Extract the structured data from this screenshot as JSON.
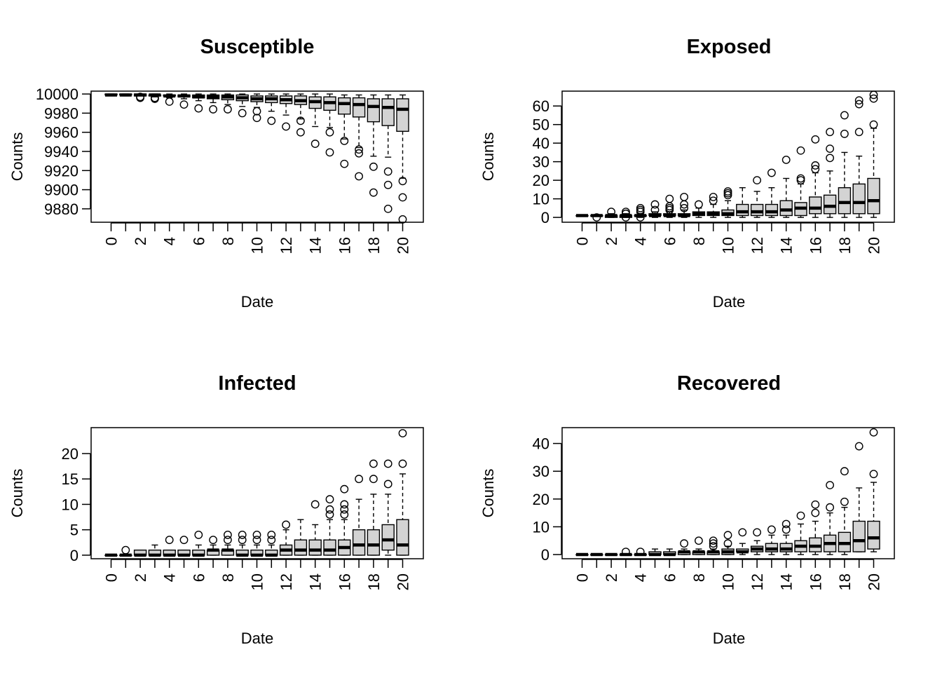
{
  "chart_data": [
    {
      "type": "boxplot",
      "title": "Susceptible",
      "xlabel": "Date",
      "ylabel": "Counts",
      "ylim": [
        9866,
        10003
      ],
      "yticks": [
        9880,
        9900,
        9920,
        9940,
        9960,
        9980,
        10000
      ],
      "x_tick_labels": [
        "0",
        "2",
        "4",
        "6",
        "8",
        "10",
        "12",
        "14",
        "16",
        "18",
        "20"
      ],
      "grid": false,
      "box_fill": "#d3d3d3",
      "categories": [
        0,
        1,
        2,
        3,
        4,
        5,
        6,
        7,
        8,
        9,
        10,
        11,
        12,
        13,
        14,
        15,
        16,
        17,
        18,
        19,
        20
      ],
      "boxes": [
        {
          "x": 0,
          "lo": 9999,
          "q1": 9999,
          "med": 9999,
          "q3": 10000,
          "hi": 10000,
          "out": []
        },
        {
          "x": 1,
          "lo": 9998,
          "q1": 9999,
          "med": 9999,
          "q3": 10000,
          "hi": 10000,
          "out": []
        },
        {
          "x": 2,
          "lo": 9998,
          "q1": 9998,
          "med": 9999,
          "q3": 10000,
          "hi": 10000,
          "out": [
            9996,
            9997
          ]
        },
        {
          "x": 3,
          "lo": 9997,
          "q1": 9998,
          "med": 9999,
          "q3": 9999,
          "hi": 10000,
          "out": [
            9995,
            9996
          ]
        },
        {
          "x": 4,
          "lo": 9996,
          "q1": 9998,
          "med": 9998,
          "q3": 9999,
          "hi": 10000,
          "out": [
            9992
          ]
        },
        {
          "x": 5,
          "lo": 9995,
          "q1": 9997,
          "med": 9998,
          "q3": 9999,
          "hi": 10000,
          "out": [
            9989
          ]
        },
        {
          "x": 6,
          "lo": 9993,
          "q1": 9996,
          "med": 9997,
          "q3": 9999,
          "hi": 10000,
          "out": [
            9985
          ]
        },
        {
          "x": 7,
          "lo": 9991,
          "q1": 9995,
          "med": 9997,
          "q3": 9999,
          "hi": 10000,
          "out": [
            9984
          ]
        },
        {
          "x": 8,
          "lo": 9989,
          "q1": 9994,
          "med": 9997,
          "q3": 9999,
          "hi": 10000,
          "out": [
            9984
          ]
        },
        {
          "x": 9,
          "lo": 9987,
          "q1": 9993,
          "med": 9996,
          "q3": 9999,
          "hi": 10000,
          "out": [
            9980
          ]
        },
        {
          "x": 10,
          "lo": 9986,
          "q1": 9992,
          "med": 9995,
          "q3": 9998,
          "hi": 10000,
          "out": [
            9975,
            9982
          ]
        },
        {
          "x": 11,
          "lo": 9982,
          "q1": 9991,
          "med": 9995,
          "q3": 9998,
          "hi": 10000,
          "out": [
            9972
          ]
        },
        {
          "x": 12,
          "lo": 9978,
          "q1": 9990,
          "med": 9994,
          "q3": 9998,
          "hi": 10000,
          "out": [
            9966
          ]
        },
        {
          "x": 13,
          "lo": 9974,
          "q1": 9989,
          "med": 9993,
          "q3": 9998,
          "hi": 10000,
          "out": [
            9960,
            9972
          ]
        },
        {
          "x": 14,
          "lo": 9966,
          "q1": 9985,
          "med": 9992,
          "q3": 9997,
          "hi": 10000,
          "out": [
            9948
          ]
        },
        {
          "x": 15,
          "lo": 9965,
          "q1": 9983,
          "med": 9991,
          "q3": 9997,
          "hi": 10000,
          "out": [
            9939,
            9960
          ]
        },
        {
          "x": 16,
          "lo": 9953,
          "q1": 9979,
          "med": 9990,
          "q3": 9996,
          "hi": 9999,
          "out": [
            9927,
            9951
          ]
        },
        {
          "x": 17,
          "lo": 9944,
          "q1": 9976,
          "med": 9989,
          "q3": 9996,
          "hi": 9999,
          "out": [
            9914,
            9938,
            9942
          ]
        },
        {
          "x": 18,
          "lo": 9935,
          "q1": 9971,
          "med": 9987,
          "q3": 9995,
          "hi": 9999,
          "out": [
            9897,
            9924
          ]
        },
        {
          "x": 19,
          "lo": 9934,
          "q1": 9967,
          "med": 9986,
          "q3": 9995,
          "hi": 9999,
          "out": [
            9880,
            9905,
            9919
          ]
        },
        {
          "x": 20,
          "lo": 9912,
          "q1": 9961,
          "med": 9984,
          "q3": 9995,
          "hi": 9999,
          "out": [
            9869,
            9892,
            9909
          ]
        }
      ]
    },
    {
      "type": "boxplot",
      "title": "Exposed",
      "xlabel": "Date",
      "ylabel": "Counts",
      "ylim": [
        -2.6,
        68
      ],
      "yticks": [
        0,
        10,
        20,
        30,
        40,
        50,
        60
      ],
      "x_tick_labels": [
        "0",
        "2",
        "4",
        "6",
        "8",
        "10",
        "12",
        "14",
        "16",
        "18",
        "20"
      ],
      "grid": false,
      "box_fill": "#d3d3d3",
      "categories": [
        0,
        1,
        2,
        3,
        4,
        5,
        6,
        7,
        8,
        9,
        10,
        11,
        12,
        13,
        14,
        15,
        16,
        17,
        18,
        19,
        20
      ],
      "boxes": [
        {
          "x": 0,
          "lo": 1,
          "q1": 1,
          "med": 1,
          "q3": 1,
          "hi": 1,
          "out": []
        },
        {
          "x": 1,
          "lo": 1,
          "q1": 1,
          "med": 1,
          "q3": 1,
          "hi": 1,
          "out": [
            0
          ]
        },
        {
          "x": 2,
          "lo": 0,
          "q1": 0,
          "med": 1,
          "q3": 1,
          "hi": 2,
          "out": [
            3
          ]
        },
        {
          "x": 3,
          "lo": 0,
          "q1": 0,
          "med": 1,
          "q3": 1,
          "hi": 2,
          "out": [
            0,
            2,
            3
          ]
        },
        {
          "x": 4,
          "lo": 0,
          "q1": 1,
          "med": 1,
          "q3": 1,
          "hi": 2,
          "out": [
            0,
            3,
            4,
            5
          ]
        },
        {
          "x": 5,
          "lo": 0,
          "q1": 1,
          "med": 1,
          "q3": 2,
          "hi": 3,
          "out": [
            4,
            7
          ]
        },
        {
          "x": 6,
          "lo": 0,
          "q1": 1,
          "med": 1,
          "q3": 2,
          "hi": 3,
          "out": [
            4,
            5,
            6,
            10
          ]
        },
        {
          "x": 7,
          "lo": 0,
          "q1": 1,
          "med": 1,
          "q3": 2,
          "hi": 4,
          "out": [
            5,
            7,
            11
          ]
        },
        {
          "x": 8,
          "lo": 0,
          "q1": 1,
          "med": 2,
          "q3": 3,
          "hi": 5,
          "out": [
            7
          ]
        },
        {
          "x": 9,
          "lo": 0,
          "q1": 1,
          "med": 2,
          "q3": 3,
          "hi": 7,
          "out": [
            9,
            11
          ]
        },
        {
          "x": 10,
          "lo": 0,
          "q1": 1,
          "med": 2,
          "q3": 4,
          "hi": 9,
          "out": [
            12,
            13,
            14
          ]
        },
        {
          "x": 11,
          "lo": 0,
          "q1": 1,
          "med": 3,
          "q3": 7,
          "hi": 16,
          "out": []
        },
        {
          "x": 12,
          "lo": 0,
          "q1": 1,
          "med": 3,
          "q3": 7,
          "hi": 14,
          "out": [
            20
          ]
        },
        {
          "x": 13,
          "lo": 0,
          "q1": 1,
          "med": 3,
          "q3": 7,
          "hi": 16,
          "out": [
            24
          ]
        },
        {
          "x": 14,
          "lo": 0,
          "q1": 1,
          "med": 4,
          "q3": 9,
          "hi": 21,
          "out": [
            31
          ]
        },
        {
          "x": 15,
          "lo": 0,
          "q1": 1,
          "med": 5,
          "q3": 8,
          "hi": 18,
          "out": [
            20,
            21,
            36
          ]
        },
        {
          "x": 16,
          "lo": 0,
          "q1": 2,
          "med": 5,
          "q3": 11,
          "hi": 24,
          "out": [
            26,
            28,
            42
          ]
        },
        {
          "x": 17,
          "lo": 0,
          "q1": 2,
          "med": 6,
          "q3": 12,
          "hi": 25,
          "out": [
            32,
            37,
            46
          ]
        },
        {
          "x": 18,
          "lo": 0,
          "q1": 2,
          "med": 8,
          "q3": 16,
          "hi": 35,
          "out": [
            45,
            55
          ]
        },
        {
          "x": 19,
          "lo": 0,
          "q1": 2,
          "med": 8,
          "q3": 18,
          "hi": 33,
          "out": [
            46,
            61,
            63
          ]
        },
        {
          "x": 20,
          "lo": 0,
          "q1": 2,
          "med": 9,
          "q3": 21,
          "hi": 48,
          "out": [
            50,
            64,
            66
          ]
        }
      ]
    },
    {
      "type": "boxplot",
      "title": "Infected",
      "xlabel": "Date",
      "ylabel": "Counts",
      "ylim": [
        -0.7,
        25.1
      ],
      "yticks": [
        0,
        5,
        10,
        15,
        20
      ],
      "x_tick_labels": [
        "0",
        "2",
        "4",
        "6",
        "8",
        "10",
        "12",
        "14",
        "16",
        "18",
        "20"
      ],
      "grid": false,
      "box_fill": "#d3d3d3",
      "categories": [
        0,
        1,
        2,
        3,
        4,
        5,
        6,
        7,
        8,
        9,
        10,
        11,
        12,
        13,
        14,
        15,
        16,
        17,
        18,
        19,
        20
      ],
      "boxes": [
        {
          "x": 0,
          "lo": 0,
          "q1": 0,
          "med": 0,
          "q3": 0,
          "hi": 0,
          "out": []
        },
        {
          "x": 1,
          "lo": 0,
          "q1": 0,
          "med": 0,
          "q3": 0,
          "hi": 0,
          "out": [
            1
          ]
        },
        {
          "x": 2,
          "lo": 0,
          "q1": 0,
          "med": 0,
          "q3": 1,
          "hi": 1,
          "out": []
        },
        {
          "x": 3,
          "lo": 0,
          "q1": 0,
          "med": 0,
          "q3": 1,
          "hi": 2,
          "out": []
        },
        {
          "x": 4,
          "lo": 0,
          "q1": 0,
          "med": 0,
          "q3": 1,
          "hi": 1,
          "out": [
            3
          ]
        },
        {
          "x": 5,
          "lo": 0,
          "q1": 0,
          "med": 0,
          "q3": 1,
          "hi": 1,
          "out": [
            3
          ]
        },
        {
          "x": 6,
          "lo": 0,
          "q1": 0,
          "med": 0,
          "q3": 1,
          "hi": 2,
          "out": [
            4
          ]
        },
        {
          "x": 7,
          "lo": 0,
          "q1": 0,
          "med": 1,
          "q3": 1,
          "hi": 2,
          "out": [
            3
          ]
        },
        {
          "x": 8,
          "lo": 0,
          "q1": 0,
          "med": 1,
          "q3": 1,
          "hi": 2,
          "out": [
            3,
            4
          ]
        },
        {
          "x": 9,
          "lo": 0,
          "q1": 0,
          "med": 0,
          "q3": 1,
          "hi": 2,
          "out": [
            3,
            4
          ]
        },
        {
          "x": 10,
          "lo": 0,
          "q1": 0,
          "med": 0,
          "q3": 1,
          "hi": 2,
          "out": [
            3,
            4
          ]
        },
        {
          "x": 11,
          "lo": 0,
          "q1": 0,
          "med": 0,
          "q3": 1,
          "hi": 2,
          "out": [
            3,
            4
          ]
        },
        {
          "x": 12,
          "lo": 0,
          "q1": 0,
          "med": 1,
          "q3": 2,
          "hi": 5,
          "out": [
            6
          ]
        },
        {
          "x": 13,
          "lo": 0,
          "q1": 0,
          "med": 1,
          "q3": 3,
          "hi": 7,
          "out": []
        },
        {
          "x": 14,
          "lo": 0,
          "q1": 0,
          "med": 1,
          "q3": 3,
          "hi": 6,
          "out": [
            10
          ]
        },
        {
          "x": 15,
          "lo": 0,
          "q1": 0,
          "med": 1,
          "q3": 3,
          "hi": 7,
          "out": [
            8,
            9,
            11
          ]
        },
        {
          "x": 16,
          "lo": 0,
          "q1": 0,
          "med": 1.5,
          "q3": 3,
          "hi": 7,
          "out": [
            8,
            9,
            10,
            13
          ]
        },
        {
          "x": 17,
          "lo": 0,
          "q1": 0,
          "med": 2,
          "q3": 5,
          "hi": 11,
          "out": [
            15
          ]
        },
        {
          "x": 18,
          "lo": 0,
          "q1": 0,
          "med": 2,
          "q3": 5,
          "hi": 12,
          "out": [
            15,
            18
          ]
        },
        {
          "x": 19,
          "lo": 0,
          "q1": 1,
          "med": 3,
          "q3": 6,
          "hi": 12,
          "out": [
            14,
            18
          ]
        },
        {
          "x": 20,
          "lo": 0,
          "q1": 0,
          "med": 2,
          "q3": 7,
          "hi": 16,
          "out": [
            18,
            24
          ]
        }
      ]
    },
    {
      "type": "boxplot",
      "title": "Recovered",
      "xlabel": "Date",
      "ylabel": "Counts",
      "ylim": [
        -1.5,
        45.7
      ],
      "yticks": [
        0,
        10,
        20,
        30,
        40
      ],
      "x_tick_labels": [
        "0",
        "2",
        "4",
        "6",
        "8",
        "10",
        "12",
        "14",
        "16",
        "18",
        "20"
      ],
      "grid": false,
      "box_fill": "#d3d3d3",
      "categories": [
        0,
        1,
        2,
        3,
        4,
        5,
        6,
        7,
        8,
        9,
        10,
        11,
        12,
        13,
        14,
        15,
        16,
        17,
        18,
        19,
        20
      ],
      "boxes": [
        {
          "x": 0,
          "lo": 0,
          "q1": 0,
          "med": 0,
          "q3": 0,
          "hi": 0,
          "out": []
        },
        {
          "x": 1,
          "lo": 0,
          "q1": 0,
          "med": 0,
          "q3": 0,
          "hi": 0,
          "out": []
        },
        {
          "x": 2,
          "lo": 0,
          "q1": 0,
          "med": 0,
          "q3": 0,
          "hi": 0,
          "out": []
        },
        {
          "x": 3,
          "lo": 0,
          "q1": 0,
          "med": 0,
          "q3": 0,
          "hi": 0,
          "out": [
            1
          ]
        },
        {
          "x": 4,
          "lo": 0,
          "q1": 0,
          "med": 0,
          "q3": 0,
          "hi": 0,
          "out": [
            1
          ]
        },
        {
          "x": 5,
          "lo": 0,
          "q1": 0,
          "med": 0,
          "q3": 1,
          "hi": 2,
          "out": []
        },
        {
          "x": 6,
          "lo": 0,
          "q1": 0,
          "med": 0,
          "q3": 1,
          "hi": 2,
          "out": []
        },
        {
          "x": 7,
          "lo": 0,
          "q1": 0,
          "med": 1,
          "q3": 1,
          "hi": 2,
          "out": [
            4
          ]
        },
        {
          "x": 8,
          "lo": 0,
          "q1": 0,
          "med": 1,
          "q3": 1,
          "hi": 2,
          "out": [
            5
          ]
        },
        {
          "x": 9,
          "lo": 0,
          "q1": 0,
          "med": 1,
          "q3": 1,
          "hi": 2,
          "out": [
            3,
            4,
            5
          ]
        },
        {
          "x": 10,
          "lo": 0,
          "q1": 0,
          "med": 1,
          "q3": 2,
          "hi": 3,
          "out": [
            4,
            7
          ]
        },
        {
          "x": 11,
          "lo": 0,
          "q1": 1,
          "med": 1,
          "q3": 2,
          "hi": 4,
          "out": [
            8
          ]
        },
        {
          "x": 12,
          "lo": 0,
          "q1": 1,
          "med": 2,
          "q3": 3,
          "hi": 5,
          "out": [
            8
          ]
        },
        {
          "x": 13,
          "lo": 0,
          "q1": 1,
          "med": 2,
          "q3": 4,
          "hi": 7,
          "out": [
            9
          ]
        },
        {
          "x": 14,
          "lo": 0,
          "q1": 1,
          "med": 2,
          "q3": 4,
          "hi": 7,
          "out": [
            9,
            11
          ]
        },
        {
          "x": 15,
          "lo": 0,
          "q1": 1,
          "med": 3,
          "q3": 5,
          "hi": 11,
          "out": [
            14
          ]
        },
        {
          "x": 16,
          "lo": 0,
          "q1": 1,
          "med": 3,
          "q3": 6,
          "hi": 12,
          "out": [
            15,
            18
          ]
        },
        {
          "x": 17,
          "lo": 0,
          "q1": 1,
          "med": 4,
          "q3": 7,
          "hi": 15,
          "out": [
            17,
            25
          ]
        },
        {
          "x": 18,
          "lo": 0,
          "q1": 1,
          "med": 4,
          "q3": 8,
          "hi": 17,
          "out": [
            19,
            30
          ]
        },
        {
          "x": 19,
          "lo": 1,
          "q1": 1,
          "med": 5,
          "q3": 12,
          "hi": 24,
          "out": [
            39
          ]
        },
        {
          "x": 20,
          "lo": 1,
          "q1": 2,
          "med": 6,
          "q3": 12,
          "hi": 26,
          "out": [
            29,
            44
          ]
        }
      ]
    }
  ]
}
